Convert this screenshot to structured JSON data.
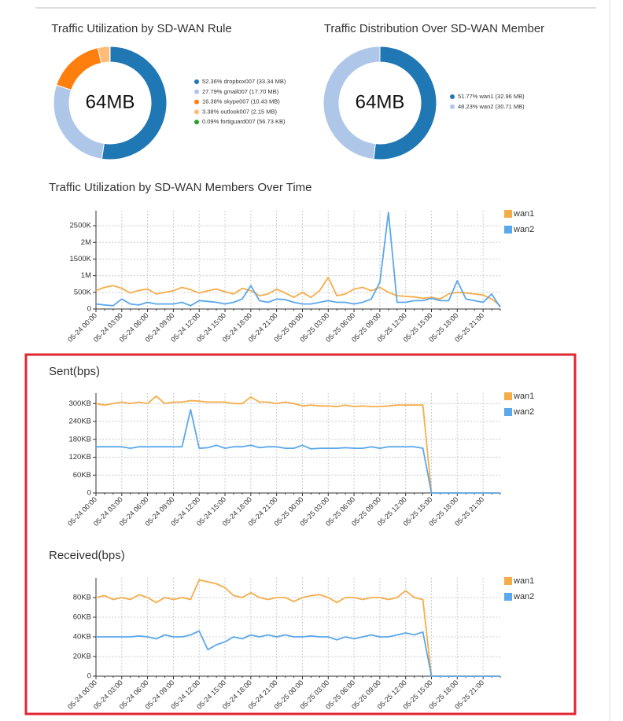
{
  "chart_data": [
    {
      "type": "pie",
      "title": "Traffic Utilization by SD-WAN Rule",
      "center_label": "64MB",
      "categories": [
        "52.36% dropbox007 (33.34 MB)",
        "27.79% gmail007 (17.70 MB)",
        "16.38% skype007 (10.43 MB)",
        "3.38% outlook007 (2.15 MB)",
        "0.09% fortiguard007 (56.73 KB)"
      ],
      "values": [
        52.36,
        27.79,
        16.38,
        3.38,
        0.09
      ],
      "colors": [
        "#1f77b4",
        "#aec7e8",
        "#ff7f0e",
        "#ffbb78",
        "#2ca02c"
      ]
    },
    {
      "type": "pie",
      "title": "Traffic Distribution Over SD-WAN Member",
      "center_label": "64MB",
      "categories": [
        "51.77% wan1 (32.96 MB)",
        "48.23% wan2 (30.71 MB)"
      ],
      "values": [
        51.77,
        48.23
      ],
      "colors": [
        "#1f77b4",
        "#aec7e8"
      ]
    },
    {
      "type": "line",
      "title": "Traffic Utilization by SD-WAN Members Over Time",
      "categories": [
        "05-24 00:00",
        null,
        null,
        "05-24 03:00",
        null,
        null,
        "05-24 06:00",
        null,
        null,
        "05-24 09:00",
        null,
        null,
        "05-24 12:00",
        null,
        null,
        "05-24 15:00",
        null,
        null,
        "05-24 18:00",
        null,
        null,
        "05-24 21:00",
        null,
        null,
        "05-25 00:00",
        null,
        null,
        "05-25 03:00",
        null,
        null,
        "05-25 06:00",
        null,
        null,
        "05-25 09:00",
        null,
        null,
        "05-25 12:00",
        null,
        null,
        "05-25 15:00",
        null,
        null,
        "05-25 18:00",
        null,
        null,
        "05-25 21:00",
        null,
        null
      ],
      "series": [
        {
          "name": "wan1",
          "color": "#f5ad4a",
          "values": [
            550000,
            650000,
            700000,
            620000,
            480000,
            560000,
            600000,
            450000,
            500000,
            550000,
            650000,
            580000,
            480000,
            550000,
            600000,
            520000,
            450000,
            620000,
            550000,
            400000,
            450000,
            600000,
            480000,
            350000,
            500000,
            350000,
            550000,
            950000,
            400000,
            450000,
            600000,
            650000,
            550000,
            650000,
            500000,
            400000,
            380000,
            360000,
            320000,
            350000,
            300000,
            450000,
            500000,
            480000,
            450000,
            420000,
            300000,
            100000
          ]
        },
        {
          "name": "wan2",
          "color": "#5ba8ec",
          "values": [
            150000,
            120000,
            100000,
            300000,
            150000,
            120000,
            200000,
            150000,
            150000,
            150000,
            200000,
            100000,
            250000,
            230000,
            200000,
            150000,
            200000,
            300000,
            700000,
            250000,
            200000,
            300000,
            280000,
            200000,
            150000,
            150000,
            200000,
            250000,
            200000,
            200000,
            150000,
            200000,
            300000,
            800000,
            2900000,
            200000,
            200000,
            250000,
            250000,
            320000,
            250000,
            250000,
            850000,
            300000,
            250000,
            200000,
            450000,
            50000
          ]
        }
      ],
      "ylim": [
        0,
        2950000
      ],
      "yticks": [
        0,
        {
          "value": 500000,
          "label": "500K"
        },
        {
          "value": 1000000,
          "label": "1M"
        },
        {
          "value": 1500000,
          "label": "1500K"
        },
        {
          "value": 2000000,
          "label": "2M"
        },
        {
          "value": 2500000,
          "label": "2500K"
        }
      ],
      "grid": true,
      "legend": "top-right"
    },
    {
      "type": "line",
      "title": "Sent(bps)",
      "categories": [
        "05-24 00:00",
        null,
        null,
        "05-24 03:00",
        null,
        null,
        "05-24 06:00",
        null,
        null,
        "05-24 09:00",
        null,
        null,
        "05-24 12:00",
        null,
        null,
        "05-24 15:00",
        null,
        null,
        "05-24 18:00",
        null,
        null,
        "05-24 21:00",
        null,
        null,
        "05-25 00:00",
        null,
        null,
        "05-25 03:00",
        null,
        null,
        "05-25 06:00",
        null,
        null,
        "05-25 09:00",
        null,
        null,
        "05-25 12:00",
        null,
        null,
        "05-25 15:00",
        null,
        null,
        "05-25 18:00",
        null,
        null,
        "05-25 21:00",
        null,
        null
      ],
      "series": [
        {
          "name": "wan1",
          "color": "#f5ad4a",
          "values": [
            300000,
            295000,
            300000,
            305000,
            300000,
            305000,
            300000,
            325000,
            300000,
            305000,
            305000,
            310000,
            308000,
            305000,
            305000,
            305000,
            300000,
            300000,
            322000,
            305000,
            305000,
            300000,
            305000,
            300000,
            292000,
            295000,
            292000,
            292000,
            290000,
            295000,
            290000,
            292000,
            290000,
            290000,
            292000,
            295000,
            295000,
            295000,
            295000,
            0,
            0,
            0,
            0,
            0,
            0,
            0,
            0,
            0
          ]
        },
        {
          "name": "wan2",
          "color": "#5ba8ec",
          "values": [
            155000,
            155000,
            155000,
            155000,
            150000,
            155000,
            155000,
            155000,
            155000,
            155000,
            155000,
            280000,
            150000,
            152000,
            160000,
            150000,
            155000,
            155000,
            160000,
            152000,
            155000,
            155000,
            150000,
            150000,
            160000,
            148000,
            150000,
            150000,
            150000,
            152000,
            150000,
            150000,
            155000,
            150000,
            155000,
            155000,
            155000,
            155000,
            150000,
            0,
            0,
            0,
            0,
            0,
            0,
            0,
            0,
            0
          ]
        }
      ],
      "ylim": [
        0,
        335000
      ],
      "yticks": [
        0,
        {
          "value": 60000,
          "label": "60KB"
        },
        {
          "value": 120000,
          "label": "120KB"
        },
        {
          "value": 180000,
          "label": "180KB"
        },
        {
          "value": 240000,
          "label": "240KB"
        },
        {
          "value": 300000,
          "label": "300KB"
        }
      ],
      "grid": true,
      "legend": "top-right"
    },
    {
      "type": "line",
      "title": "Received(bps)",
      "categories": [
        "05-24 00:00",
        null,
        null,
        "05-24 03:00",
        null,
        null,
        "05-24 06:00",
        null,
        null,
        "05-24 09:00",
        null,
        null,
        "05-24 12:00",
        null,
        null,
        "05-24 15:00",
        null,
        null,
        "05-24 18:00",
        null,
        null,
        "05-24 21:00",
        null,
        null,
        "05-25 00:00",
        null,
        null,
        "05-25 03:00",
        null,
        null,
        "05-25 06:00",
        null,
        null,
        "05-25 09:00",
        null,
        null,
        "05-25 12:00",
        null,
        null,
        "05-25 15:00",
        null,
        null,
        "05-25 18:00",
        null,
        null,
        "05-25 21:00",
        null,
        null
      ],
      "series": [
        {
          "name": "wan1",
          "color": "#f5ad4a",
          "values": [
            80000,
            82000,
            78000,
            80000,
            78000,
            83000,
            80000,
            75000,
            80000,
            78000,
            80000,
            78000,
            98000,
            96000,
            94000,
            90000,
            82000,
            80000,
            85000,
            80000,
            78000,
            80000,
            80000,
            76000,
            80000,
            82000,
            83000,
            80000,
            75000,
            80000,
            80000,
            78000,
            80000,
            80000,
            78000,
            80000,
            87000,
            80000,
            78000,
            0,
            0,
            0,
            0,
            0,
            0,
            0,
            0,
            0
          ]
        },
        {
          "name": "wan2",
          "color": "#5ba8ec",
          "values": [
            40000,
            40000,
            40000,
            40000,
            40000,
            41000,
            40000,
            38000,
            42000,
            40000,
            40000,
            42000,
            46000,
            27000,
            32000,
            35000,
            40000,
            38000,
            42000,
            40000,
            42000,
            40000,
            42000,
            40000,
            40000,
            41000,
            40000,
            40000,
            37000,
            40000,
            38000,
            40000,
            42000,
            40000,
            40000,
            42000,
            44000,
            42000,
            45000,
            0,
            0,
            0,
            0,
            0,
            0,
            0,
            0,
            0
          ]
        }
      ],
      "ylim": [
        0,
        100000
      ],
      "yticks": [
        0,
        {
          "value": 20000,
          "label": "20KB"
        },
        {
          "value": 40000,
          "label": "40KB"
        },
        {
          "value": 60000,
          "label": "60KB"
        },
        {
          "value": 80000,
          "label": "80KB"
        }
      ],
      "grid": true,
      "legend": "top-right"
    }
  ]
}
